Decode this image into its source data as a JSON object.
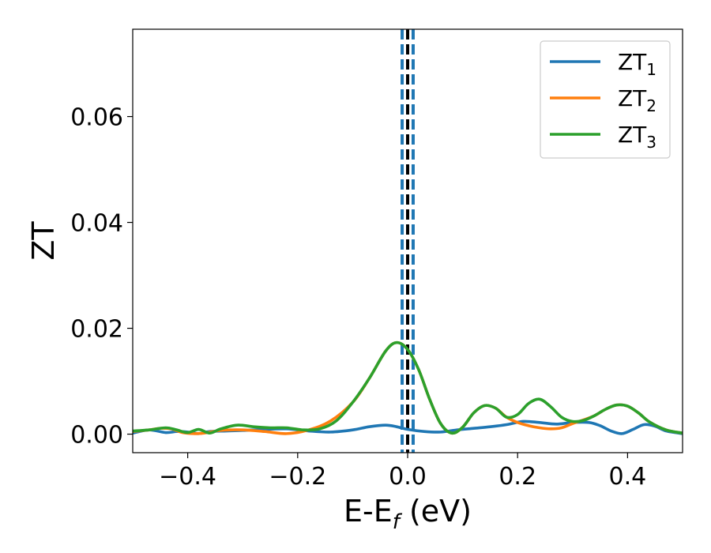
{
  "chart_data": {
    "type": "line",
    "xlabel": "E-E",
    "xlabel_sub": "f",
    "xlabel_unit": " (eV)",
    "ylabel": "ZT",
    "xlim": [
      -0.5,
      0.5
    ],
    "ylim": [
      -0.0035,
      0.0765
    ],
    "xticks": [
      -0.4,
      -0.2,
      0.0,
      0.2,
      0.4
    ],
    "xtick_labels": [
      "−0.4",
      "−0.2",
      "0.0",
      "0.2",
      "0.4"
    ],
    "yticks": [
      0.0,
      0.02,
      0.04,
      0.06
    ],
    "ytick_labels": [
      "0.00",
      "0.02",
      "0.04",
      "0.06"
    ],
    "grid": false,
    "legend_position": "top-right",
    "vlines": [
      {
        "x": 0.0,
        "color": "#000000",
        "style": "dashed"
      },
      {
        "x": -0.01,
        "color": "#1f77b4",
        "style": "dashed"
      },
      {
        "x": 0.01,
        "color": "#1f77b4",
        "style": "dashed"
      }
    ],
    "series": [
      {
        "name": "ZT",
        "sub": "1",
        "color": "#1f77b4",
        "x": [
          -0.5,
          -0.47,
          -0.44,
          -0.42,
          -0.4,
          -0.38,
          -0.36,
          -0.33,
          -0.3,
          -0.26,
          -0.22,
          -0.18,
          -0.14,
          -0.1,
          -0.07,
          -0.04,
          -0.02,
          0.0,
          0.03,
          0.06,
          0.09,
          0.12,
          0.15,
          0.18,
          0.21,
          0.24,
          0.27,
          0.3,
          0.33,
          0.35,
          0.37,
          0.39,
          0.41,
          0.43,
          0.45,
          0.47,
          0.5
        ],
        "y": [
          0.0002,
          0.0008,
          0.0003,
          0.0005,
          0.0004,
          0.0001,
          0.0005,
          0.0006,
          0.0007,
          0.0009,
          0.001,
          0.0006,
          0.0004,
          0.0008,
          0.0014,
          0.0017,
          0.0014,
          0.0009,
          0.0005,
          0.0004,
          0.0008,
          0.0011,
          0.0014,
          0.0018,
          0.0024,
          0.0022,
          0.0019,
          0.0022,
          0.0022,
          0.0016,
          0.0006,
          0.0001,
          0.0009,
          0.0018,
          0.0015,
          0.0006,
          0.0001
        ]
      },
      {
        "name": "ZT",
        "sub": "2",
        "color": "#ff7f0e",
        "x": [
          -0.5,
          -0.47,
          -0.45,
          -0.43,
          -0.41,
          -0.39,
          -0.37,
          -0.34,
          -0.3,
          -0.26,
          -0.22,
          -0.18,
          -0.14,
          -0.1,
          -0.07,
          -0.04,
          -0.02,
          0.0,
          0.02,
          0.04,
          0.06,
          0.08,
          0.1,
          0.12,
          0.14,
          0.16,
          0.18,
          0.2,
          0.22,
          0.24,
          0.26,
          0.28,
          0.3,
          0.32,
          0.34,
          0.36,
          0.38,
          0.4,
          0.42,
          0.44,
          0.47,
          0.5
        ],
        "y": [
          0.0005,
          0.0008,
          0.0011,
          0.001,
          0.0003,
          0.0001,
          0.0002,
          0.0007,
          0.0008,
          0.0005,
          0.0001,
          0.0008,
          0.0025,
          0.006,
          0.0105,
          0.0157,
          0.0173,
          0.016,
          0.0122,
          0.0066,
          0.002,
          0.0002,
          0.0013,
          0.004,
          0.0054,
          0.0049,
          0.0032,
          0.0022,
          0.0016,
          0.0012,
          0.001,
          0.0012,
          0.002,
          0.0027,
          0.0035,
          0.0047,
          0.0055,
          0.0053,
          0.004,
          0.0023,
          0.0008,
          0.0002
        ]
      },
      {
        "name": "ZT",
        "sub": "3",
        "color": "#2ca02c",
        "x": [
          -0.5,
          -0.47,
          -0.44,
          -0.42,
          -0.4,
          -0.38,
          -0.36,
          -0.34,
          -0.31,
          -0.28,
          -0.25,
          -0.22,
          -0.19,
          -0.16,
          -0.13,
          -0.1,
          -0.07,
          -0.04,
          -0.02,
          0.0,
          0.02,
          0.04,
          0.06,
          0.08,
          0.1,
          0.12,
          0.14,
          0.16,
          0.18,
          0.2,
          0.22,
          0.24,
          0.26,
          0.28,
          0.3,
          0.32,
          0.34,
          0.36,
          0.38,
          0.4,
          0.42,
          0.44,
          0.47,
          0.5
        ],
        "y": [
          0.0006,
          0.0008,
          0.0012,
          0.0008,
          0.0003,
          0.0009,
          0.0002,
          0.001,
          0.0017,
          0.0014,
          0.0012,
          0.0012,
          0.0008,
          0.001,
          0.0025,
          0.006,
          0.0105,
          0.0157,
          0.0173,
          0.016,
          0.0122,
          0.0066,
          0.002,
          0.0002,
          0.0013,
          0.004,
          0.0054,
          0.0049,
          0.0032,
          0.0037,
          0.0058,
          0.0066,
          0.0052,
          0.0032,
          0.0024,
          0.0026,
          0.0035,
          0.0047,
          0.0055,
          0.0053,
          0.004,
          0.0023,
          0.0008,
          0.0002
        ]
      }
    ]
  }
}
